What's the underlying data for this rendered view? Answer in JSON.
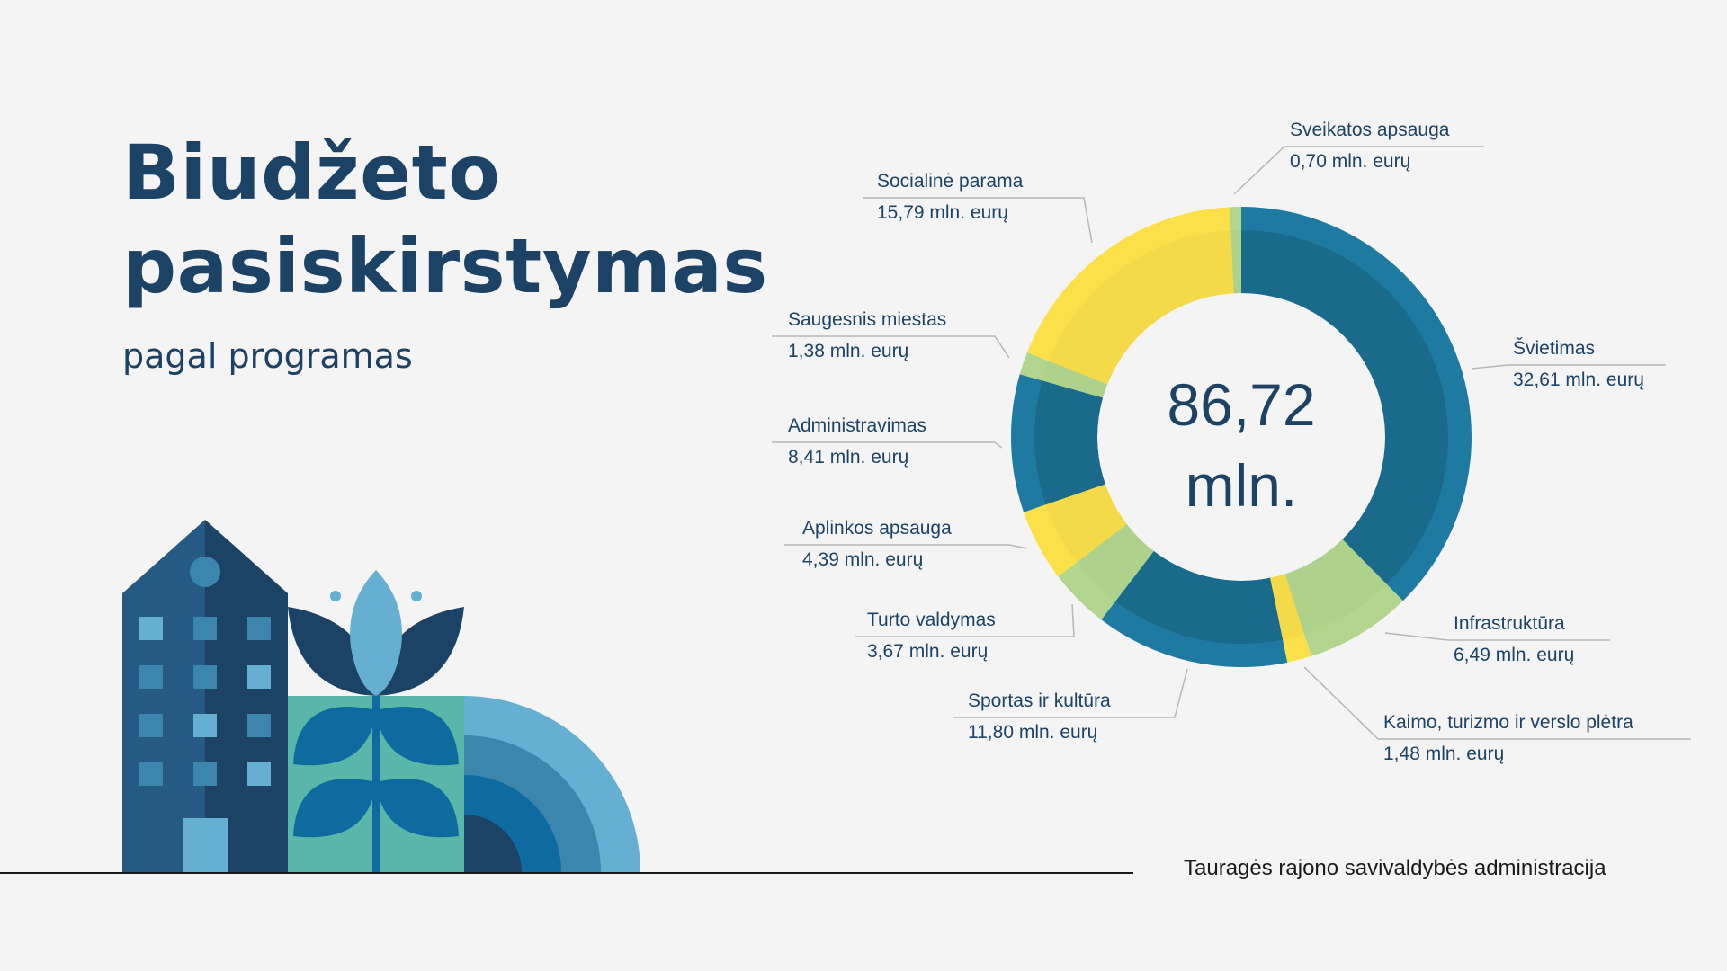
{
  "header": {
    "title_line1": "Biudžeto",
    "title_line2": "pasiskirstymas",
    "subtitle": "pagal programas"
  },
  "footer": {
    "organization": "Tauragės rajono savivaldybės administracija"
  },
  "chart_data": {
    "type": "pie",
    "variant": "donut",
    "center_label_line1": "86,72",
    "center_label_line2": "mln.",
    "unit": "mln. eurų",
    "slices": [
      {
        "name": "Švietimas",
        "value": 32.61,
        "label": "32,61 mln. eurų",
        "color": "#1f7aa1"
      },
      {
        "name": "Infrastruktūra",
        "value": 6.49,
        "label": "6,49 mln. eurų",
        "color": "#b2d68f"
      },
      {
        "name": "Kaimo, turizmo ir verslo plėtra",
        "value": 1.48,
        "label": "1,48 mln. eurų",
        "color": "#fbe04a"
      },
      {
        "name": "Sportas ir kultūra",
        "value": 11.8,
        "label": "11,80 mln. eurų",
        "color": "#1f7aa1"
      },
      {
        "name": "Turto valdymas",
        "value": 3.67,
        "label": "3,67 mln. eurų",
        "color": "#b2d68f"
      },
      {
        "name": "Aplinkos apsauga",
        "value": 4.39,
        "label": "4,39 mln. eurų",
        "color": "#fbe04a"
      },
      {
        "name": "Administravimas",
        "value": 8.41,
        "label": "8,41 mln. eurų",
        "color": "#1f7aa1"
      },
      {
        "name": "Saugesnis miestas",
        "value": 1.38,
        "label": "1,38 mln. eurų",
        "color": "#b2d68f"
      },
      {
        "name": "Socialinė parama",
        "value": 15.79,
        "label": "15,79 mln. eurų",
        "color": "#fbe04a"
      },
      {
        "name": "Sveikatos apsauga",
        "value": 0.7,
        "label": "0,70 mln. eurų",
        "color": "#b2d68f"
      }
    ],
    "legend": "callout-labels"
  }
}
